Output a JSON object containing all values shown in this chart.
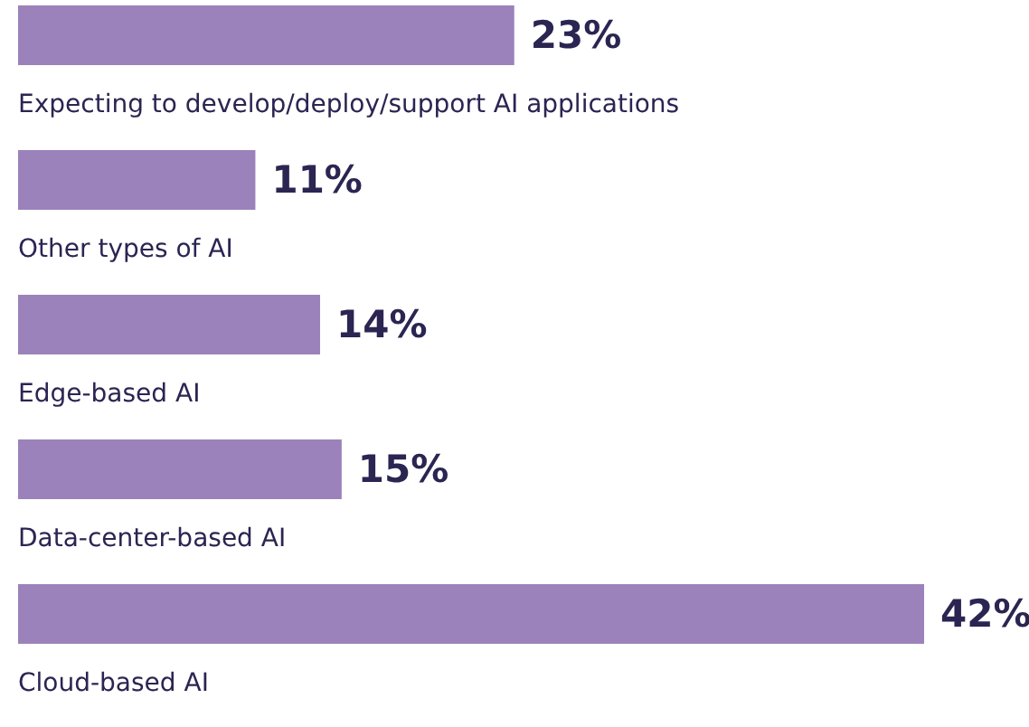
{
  "chart_data": {
    "type": "bar",
    "orientation": "horizontal",
    "categories": [
      "Expecting to develop/deploy/support AI applications",
      "Other types of AI",
      "Edge-based AI",
      "Data-center-based AI",
      "Cloud-based AI"
    ],
    "values": [
      23,
      11,
      14,
      15,
      42
    ],
    "value_labels": [
      "23%",
      "11%",
      "14%",
      "15%",
      "42%"
    ],
    "color": "#9b82bb"
  }
}
